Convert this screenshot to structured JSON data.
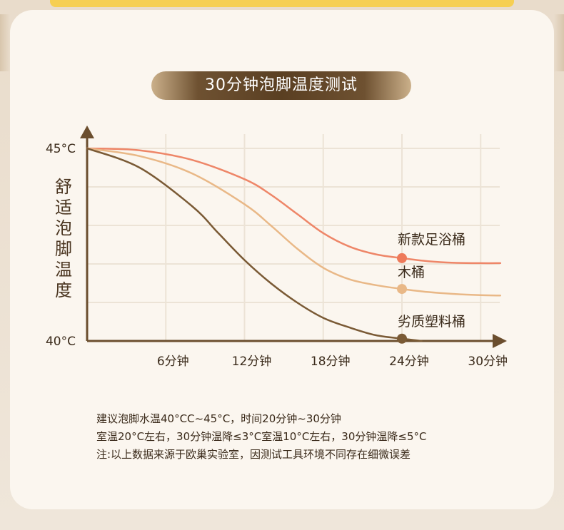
{
  "title": "30分钟泡脚温度测试",
  "colors": {
    "accent_brown": "#7a5a35",
    "grid": "#ece3d6"
  },
  "chart_data": {
    "type": "line",
    "title": "30分钟泡脚温度测试",
    "ylabel": "舒适泡脚温度",
    "xlabel": "",
    "x_ticks": [
      "6分钟",
      "12分钟",
      "18分钟",
      "24分钟",
      "30分钟"
    ],
    "y_ticks": [
      "45°C",
      "40°C"
    ],
    "xlim": [
      0,
      32
    ],
    "ylim": [
      40,
      45
    ],
    "grid": true,
    "series": [
      {
        "name": "新款足浴桶",
        "color": "#ee8668",
        "x": [
          0,
          4,
          8,
          12,
          14,
          16,
          18,
          20,
          22,
          24,
          26,
          28,
          30,
          31.5
        ],
        "y": [
          45,
          44.95,
          44.7,
          44.2,
          43.8,
          43.3,
          42.8,
          42.45,
          42.25,
          42.15,
          42.07,
          42.03,
          42.02,
          42.02
        ],
        "marker": {
          "x": 24,
          "y": 42.15,
          "color": "#ee7a5a"
        }
      },
      {
        "name": "木桶",
        "color": "#e9b887",
        "x": [
          0,
          4,
          8,
          12,
          14,
          16,
          18,
          20,
          22,
          24,
          26,
          28,
          30,
          31.5
        ],
        "y": [
          45,
          44.8,
          44.35,
          43.55,
          43.0,
          42.4,
          41.9,
          41.6,
          41.45,
          41.35,
          41.27,
          41.22,
          41.19,
          41.18
        ],
        "marker": {
          "x": 24,
          "y": 41.35,
          "color": "#e9b887"
        }
      },
      {
        "name": "劣质塑料桶",
        "color": "#7a5a35",
        "x": [
          0,
          4,
          8,
          10,
          12,
          14,
          16,
          18,
          20,
          22,
          24,
          25.5
        ],
        "y": [
          45,
          44.5,
          43.5,
          42.8,
          42.1,
          41.5,
          41.0,
          40.6,
          40.35,
          40.15,
          40.06,
          40.0
        ],
        "marker": {
          "x": 24,
          "y": 40.06,
          "color": "#7a5a35"
        }
      }
    ]
  },
  "notes": [
    "建议泡脚水温40°CC~45°C，时间20分钟~30分钟",
    "室温20°C左右，30分钟温降≤3°C室温10°C左右，30分钟温降≤5°C",
    "注:以上数据来源于欧巢实验室，因测试工具环境不同存在细微误差"
  ]
}
